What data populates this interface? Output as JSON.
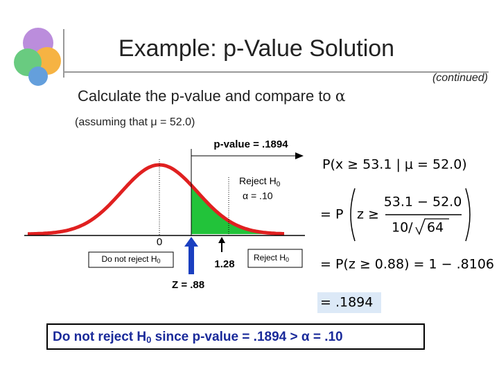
{
  "title": "Example: p-Value Solution",
  "continued": "(continued)",
  "subtitle": {
    "text": "Calculate the p-value and compare to ",
    "symbol": "α"
  },
  "assumption": "(assuming that μ = 52.0)",
  "figure": {
    "p_value_label": "p-value = .1894",
    "reject_upper": {
      "text": "Reject H",
      "sub": "0"
    },
    "alpha_label": "α = .10",
    "zero_label": "0",
    "do_not_reject": {
      "text": "Do not reject H",
      "sub": "0"
    },
    "critical_label": "1.28",
    "reject_lower": {
      "text": "Reject H",
      "sub": "0"
    },
    "z_label": "Z = .88"
  },
  "equations": {
    "line1": "P(x ≥ 53.1 | μ = 52.0)",
    "line2_prefix": "= P",
    "line2_z": "z ≥",
    "line2_numerator": "53.1 − 52.0",
    "line2_denominator": "10/",
    "line2_root": "64",
    "line3": "= P(z ≥ 0.88) = 1 − .8106",
    "line4": "= .1894"
  },
  "conclusion": {
    "before": "Do not reject H",
    "sub": "0",
    "after": " since p-value = .1894 > α = .10"
  }
}
